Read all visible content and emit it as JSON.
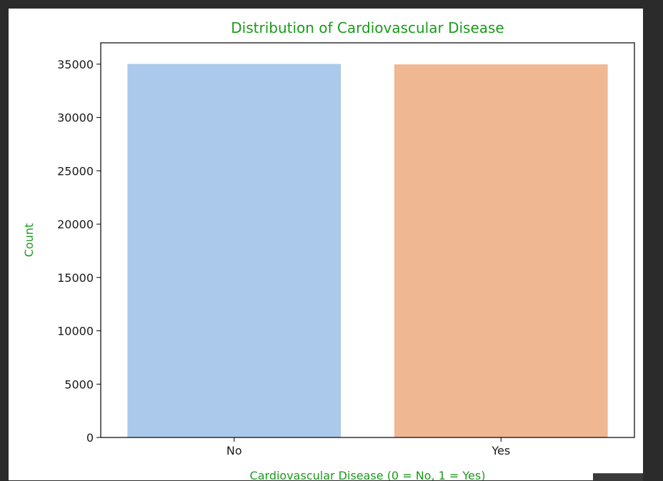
{
  "chart_data": {
    "type": "bar",
    "title": "Distribution of Cardiovascular Disease",
    "xlabel": "Cardiovascular Disease (0 = No, 1 = Yes)",
    "ylabel": "Count",
    "categories": [
      "No",
      "Yes"
    ],
    "values": [
      35021,
      34979
    ],
    "ylim": [
      0,
      37000
    ],
    "yticks": [
      0,
      5000,
      10000,
      15000,
      20000,
      25000,
      30000,
      35000
    ],
    "bar_colors": [
      "#abc9ea",
      "#efb792"
    ],
    "label_color": "#1a9a1a",
    "grid": false,
    "legend": "none"
  }
}
